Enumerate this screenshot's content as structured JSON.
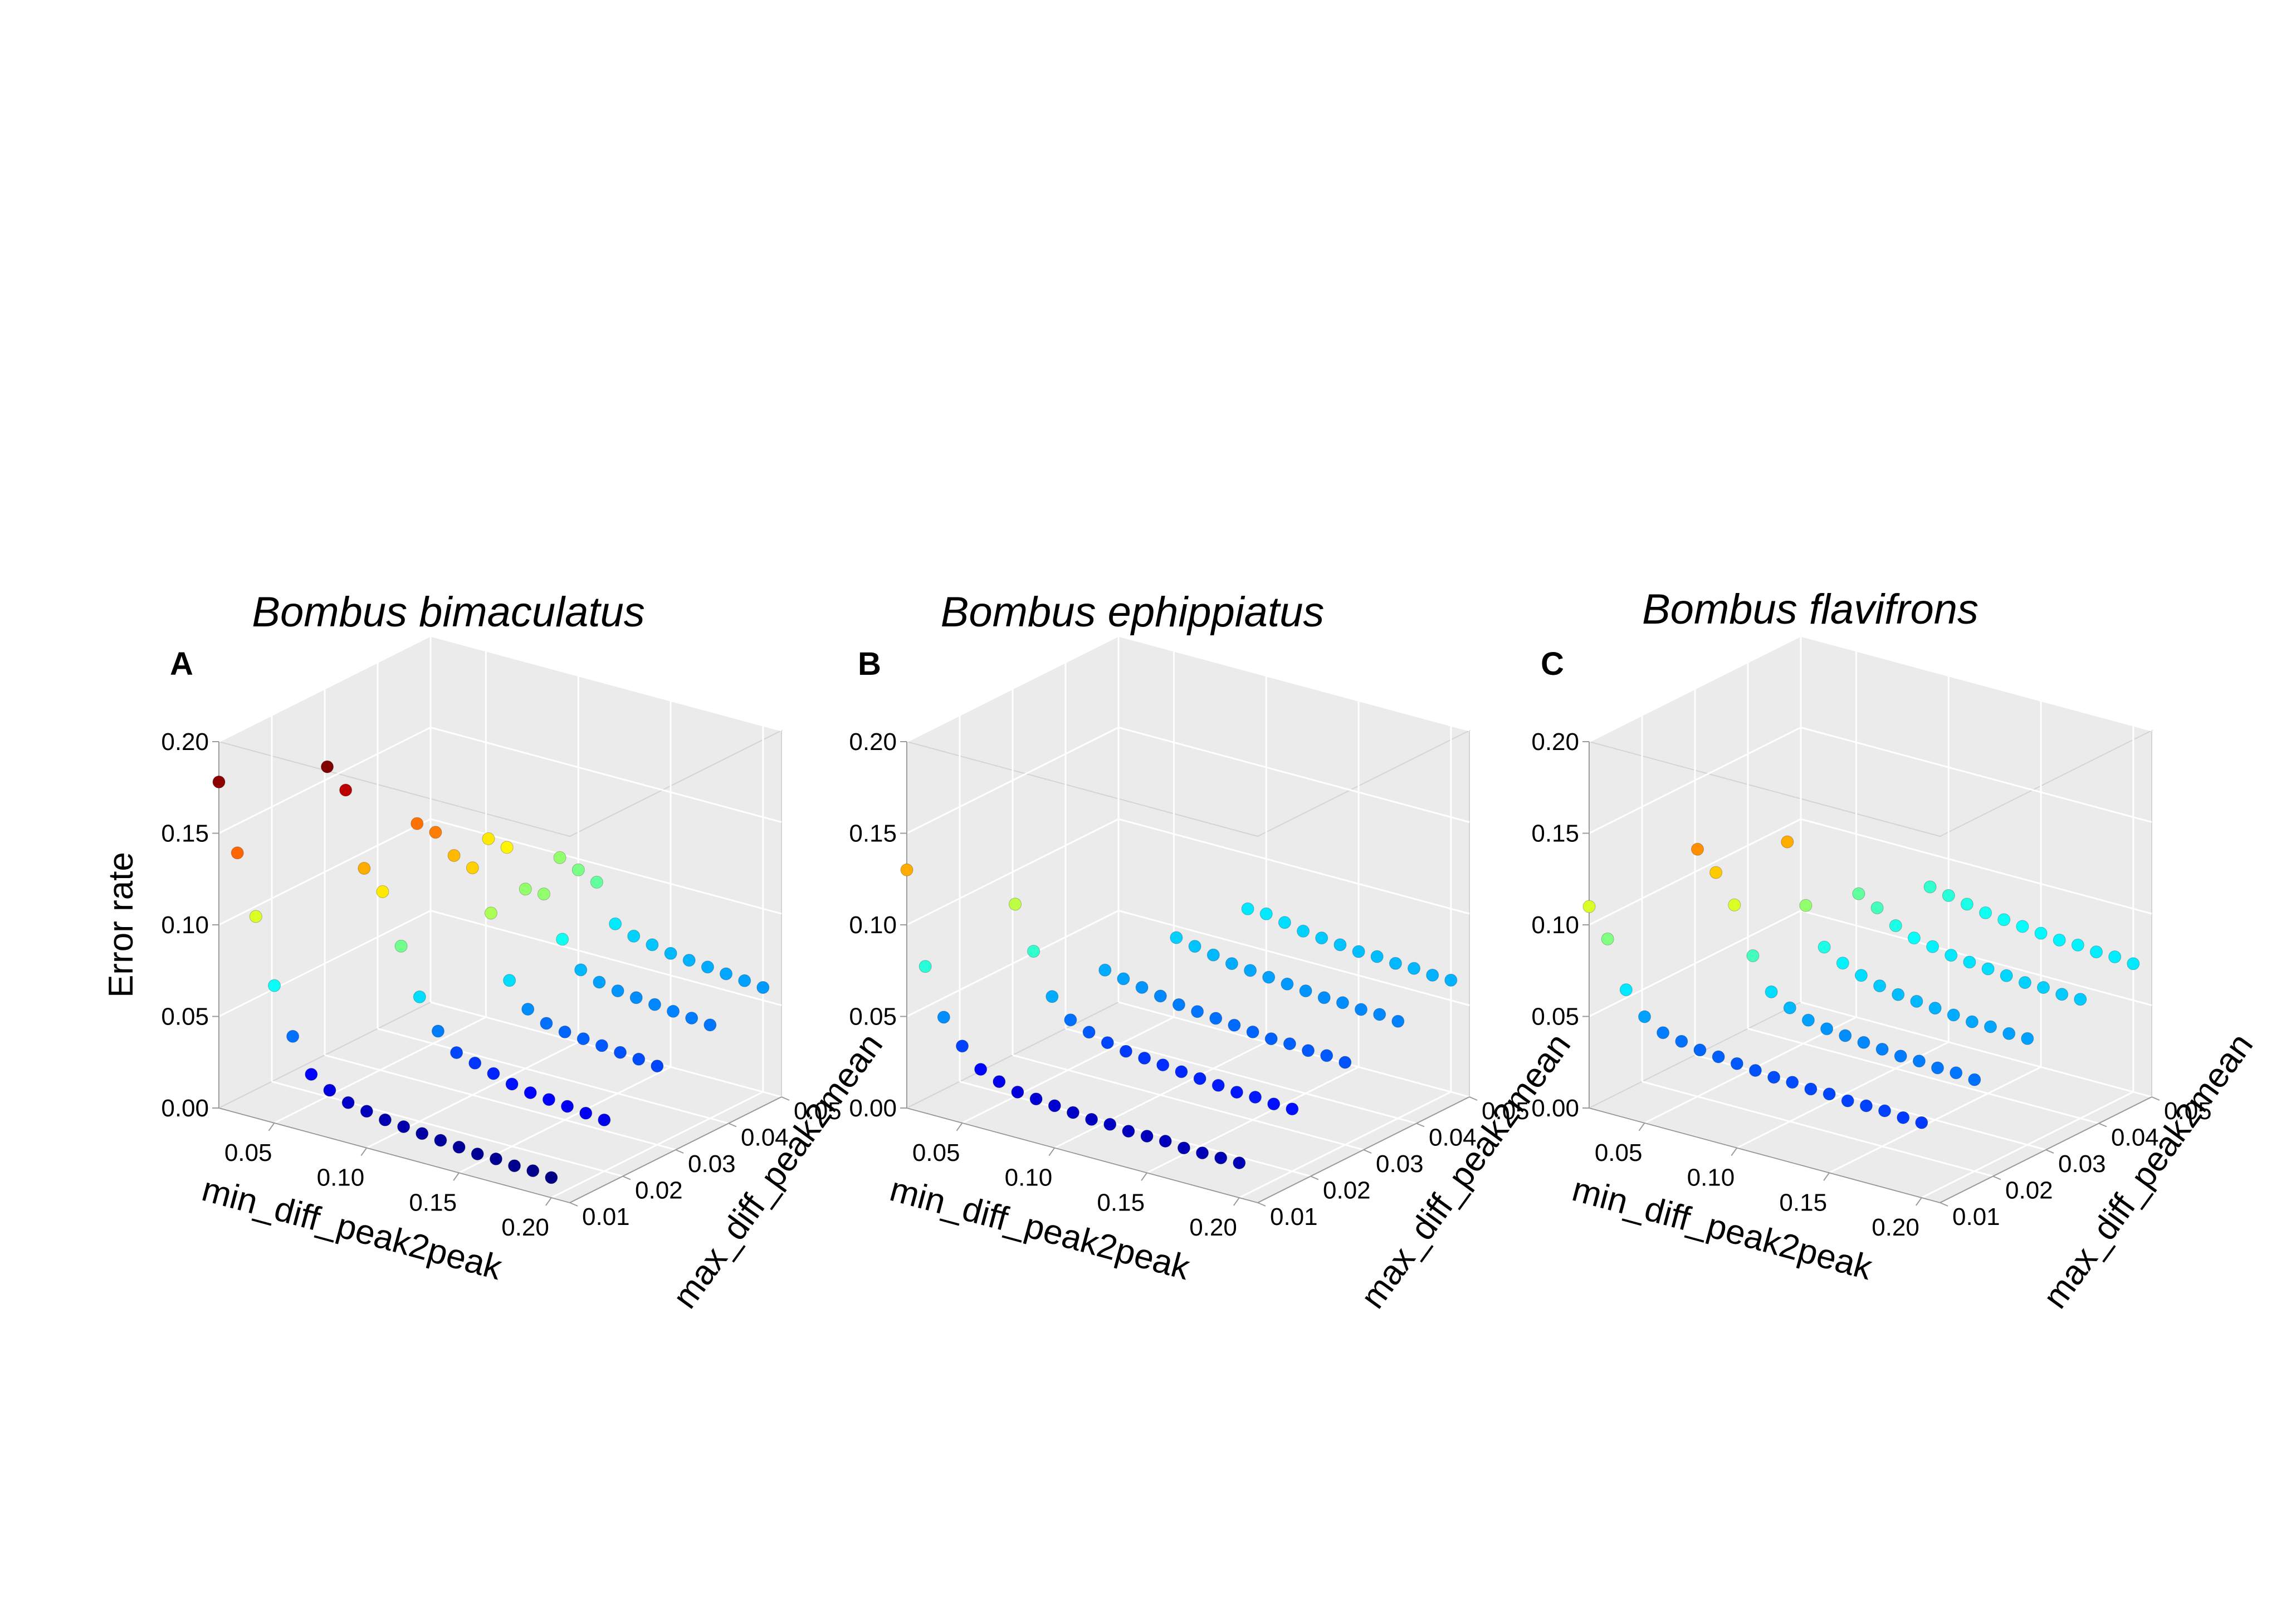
{
  "chart_data": [
    {
      "type": "scatter3d",
      "panel": "A",
      "title": "Bombus bimaculatus",
      "xlabel": "min_diff_peak2peak",
      "ylabel": "max_diff_peak2mean",
      "zlabel": "Error rate",
      "x_ticks": [
        "0.05",
        "0.10",
        "0.15",
        "0.20"
      ],
      "y_ticks": [
        "0.01",
        "0.02",
        "0.03",
        "0.04",
        "0.05"
      ],
      "z_ticks": [
        "0.00",
        "0.05",
        "0.10",
        "0.15",
        "0.20"
      ],
      "xlim": [
        0.02,
        0.21
      ],
      "ylim": [
        0.01,
        0.05
      ],
      "zlim": [
        0.0,
        0.2
      ],
      "colormap": "jet",
      "grid": true,
      "series": [
        {
          "y": 0.01,
          "x": [
            0.02,
            0.03,
            0.04,
            0.05,
            0.06,
            0.07,
            0.08,
            0.09,
            0.1,
            0.11,
            0.12,
            0.13,
            0.14,
            0.15,
            0.16,
            0.17,
            0.18,
            0.19,
            0.2
          ],
          "z": [
            0.178,
            0.142,
            0.11,
            0.075,
            0.05,
            0.032,
            0.026,
            0.022,
            0.02,
            0.018,
            0.017,
            0.016,
            0.015,
            0.014,
            0.013,
            0.013,
            0.012,
            0.012,
            0.011
          ]
        },
        {
          "y": 0.02,
          "x": [
            0.05,
            0.06,
            0.07,
            0.08,
            0.09,
            0.1,
            0.11,
            0.12,
            0.13,
            0.14,
            0.15,
            0.16,
            0.17,
            0.18,
            0.19,
            0.2
          ],
          "z": [
            0.18,
            0.17,
            0.13,
            0.12,
            0.093,
            0.068,
            0.052,
            0.043,
            0.04,
            0.037,
            0.034,
            0.032,
            0.031,
            0.03,
            0.029,
            0.028
          ]
        },
        {
          "y": 0.03,
          "x": [
            0.07,
            0.08,
            0.09,
            0.1,
            0.11,
            0.12,
            0.13,
            0.14,
            0.15,
            0.16,
            0.17,
            0.18,
            0.19,
            0.2
          ],
          "z": [
            0.14,
            0.138,
            0.128,
            0.124,
            0.102,
            0.068,
            0.055,
            0.05,
            0.048,
            0.047,
            0.046,
            0.045,
            0.044,
            0.043
          ]
        },
        {
          "y": 0.04,
          "x": [
            0.08,
            0.09,
            0.1,
            0.11,
            0.12,
            0.13,
            0.14,
            0.15,
            0.16,
            0.17,
            0.18,
            0.19,
            0.2
          ],
          "z": [
            0.12,
            0.118,
            0.098,
            0.098,
            0.076,
            0.062,
            0.058,
            0.056,
            0.055,
            0.054,
            0.053,
            0.052,
            0.051
          ]
        },
        {
          "y": 0.05,
          "x": [
            0.09,
            0.1,
            0.11,
            0.12,
            0.13,
            0.14,
            0.15,
            0.16,
            0.17,
            0.18,
            0.19,
            0.2
          ],
          "z": [
            0.098,
            0.094,
            0.09,
            0.07,
            0.066,
            0.064,
            0.062,
            0.061,
            0.06,
            0.059,
            0.058,
            0.057
          ]
        }
      ]
    },
    {
      "type": "scatter3d",
      "panel": "B",
      "title": "Bombus ephippiatus",
      "xlabel": "min_diff_peak2peak",
      "ylabel": "max_diff_peak2mean",
      "zlabel": "",
      "x_ticks": [
        "0.05",
        "0.10",
        "0.15",
        "0.20"
      ],
      "y_ticks": [
        "0.01",
        "0.02",
        "0.03",
        "0.04",
        "0.05"
      ],
      "z_ticks": [
        "0.00",
        "0.05",
        "0.10",
        "0.15",
        "0.20"
      ],
      "xlim": [
        0.02,
        0.21
      ],
      "ylim": [
        0.01,
        0.05
      ],
      "zlim": [
        0.0,
        0.2
      ],
      "colormap": "jet",
      "grid": true,
      "series": [
        {
          "y": 0.01,
          "x": [
            0.02,
            0.03,
            0.04,
            0.05,
            0.06,
            0.07,
            0.08,
            0.09,
            0.1,
            0.11,
            0.12,
            0.13,
            0.14,
            0.15,
            0.16,
            0.17,
            0.18,
            0.19,
            0.2
          ],
          "z": [
            0.13,
            0.08,
            0.055,
            0.042,
            0.032,
            0.028,
            0.025,
            0.024,
            0.023,
            0.022,
            0.021,
            0.021,
            0.02,
            0.02,
            0.02,
            0.019,
            0.019,
            0.019,
            0.019
          ]
        },
        {
          "y": 0.02,
          "x": [
            0.05,
            0.06,
            0.07,
            0.08,
            0.09,
            0.1,
            0.11,
            0.12,
            0.13,
            0.14,
            0.15,
            0.16,
            0.17,
            0.18,
            0.19,
            0.2
          ],
          "z": [
            0.105,
            0.082,
            0.06,
            0.05,
            0.046,
            0.043,
            0.041,
            0.04,
            0.039,
            0.038,
            0.037,
            0.036,
            0.035,
            0.035,
            0.034,
            0.034
          ]
        },
        {
          "y": 0.03,
          "x": [
            0.07,
            0.08,
            0.09,
            0.1,
            0.11,
            0.12,
            0.13,
            0.14,
            0.15,
            0.16,
            0.17,
            0.18,
            0.19,
            0.2
          ],
          "z": [
            0.06,
            0.058,
            0.056,
            0.054,
            0.052,
            0.051,
            0.05,
            0.049,
            0.048,
            0.047,
            0.047,
            0.046,
            0.046,
            0.045
          ]
        },
        {
          "y": 0.04,
          "x": [
            0.08,
            0.09,
            0.1,
            0.11,
            0.12,
            0.13,
            0.14,
            0.15,
            0.16,
            0.17,
            0.18,
            0.19,
            0.2
          ],
          "z": [
            0.066,
            0.064,
            0.062,
            0.06,
            0.059,
            0.058,
            0.057,
            0.056,
            0.055,
            0.055,
            0.054,
            0.054,
            0.053
          ]
        },
        {
          "y": 0.05,
          "x": [
            0.09,
            0.1,
            0.11,
            0.12,
            0.13,
            0.14,
            0.15,
            0.16,
            0.17,
            0.18,
            0.19,
            0.2
          ],
          "z": [
            0.07,
            0.07,
            0.068,
            0.066,
            0.065,
            0.064,
            0.063,
            0.063,
            0.062,
            0.062,
            0.061,
            0.061
          ]
        }
      ]
    },
    {
      "type": "scatter3d",
      "panel": "C",
      "title": "Bombus flavifrons",
      "xlabel": "min_diff_peak2peak",
      "ylabel": "max_diff_peak2mean",
      "zlabel": "",
      "x_ticks": [
        "0.05",
        "0.10",
        "0.15",
        "0.20"
      ],
      "y_ticks": [
        "0.01",
        "0.02",
        "0.03",
        "0.04",
        "0.05"
      ],
      "z_ticks": [
        "0.00",
        "0.05",
        "0.10",
        "0.15",
        "0.20"
      ],
      "xlim": [
        0.02,
        0.21
      ],
      "ylim": [
        0.01,
        0.05
      ],
      "zlim": [
        0.0,
        0.2
      ],
      "colormap": "jet",
      "grid": true,
      "series": [
        {
          "y": 0.01,
          "x": [
            0.02,
            0.03,
            0.04,
            0.05,
            0.06,
            0.07,
            0.08,
            0.09,
            0.1,
            0.11,
            0.12,
            0.13,
            0.14,
            0.15,
            0.16,
            0.17,
            0.18,
            0.19,
            0.2
          ],
          "z": [
            0.11,
            0.095,
            0.07,
            0.058,
            0.052,
            0.05,
            0.048,
            0.047,
            0.046,
            0.045,
            0.044,
            0.044,
            0.043,
            0.043,
            0.042,
            0.042,
            0.042,
            0.041,
            0.041
          ]
        },
        {
          "y": 0.02,
          "x": [
            0.05,
            0.06,
            0.07,
            0.08,
            0.09,
            0.1,
            0.11,
            0.12,
            0.13,
            0.14,
            0.15,
            0.16,
            0.17,
            0.18,
            0.19,
            0.2
          ],
          "z": [
            0.135,
            0.125,
            0.11,
            0.085,
            0.068,
            0.062,
            0.058,
            0.056,
            0.055,
            0.054,
            0.053,
            0.052,
            0.052,
            0.051,
            0.051,
            0.05
          ]
        },
        {
          "y": 0.03,
          "x": [
            0.07,
            0.08,
            0.09,
            0.1,
            0.11,
            0.12,
            0.13,
            0.14,
            0.15,
            0.16,
            0.17,
            0.18,
            0.19,
            0.2
          ],
          "z": [
            0.13,
            0.098,
            0.078,
            0.072,
            0.068,
            0.065,
            0.063,
            0.062,
            0.061,
            0.06,
            0.059,
            0.059,
            0.058,
            0.058
          ]
        },
        {
          "y": 0.04,
          "x": [
            0.08,
            0.09,
            0.1,
            0.11,
            0.12,
            0.13,
            0.14,
            0.15,
            0.16,
            0.17,
            0.18,
            0.19,
            0.2
          ],
          "z": [
            0.09,
            0.085,
            0.078,
            0.074,
            0.072,
            0.07,
            0.069,
            0.068,
            0.067,
            0.066,
            0.066,
            0.065,
            0.065
          ]
        },
        {
          "y": 0.05,
          "x": [
            0.09,
            0.1,
            0.11,
            0.12,
            0.13,
            0.14,
            0.15,
            0.16,
            0.17,
            0.18,
            0.19,
            0.2
          ],
          "z": [
            0.082,
            0.08,
            0.078,
            0.076,
            0.075,
            0.074,
            0.073,
            0.072,
            0.072,
            0.071,
            0.071,
            0.07
          ]
        }
      ]
    }
  ]
}
